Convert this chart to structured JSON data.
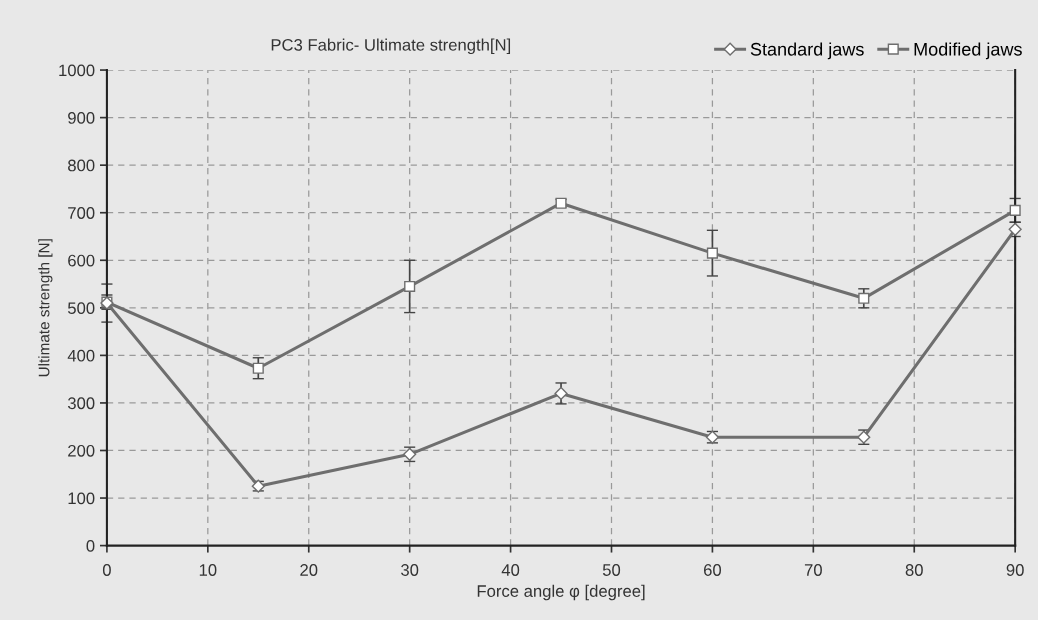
{
  "chart_data": {
    "type": "line",
    "title": "PC3 Fabric- Ultimate strength[N]",
    "xlabel": "Force angle φ [degree]",
    "ylabel": "Ultimate strength [N]",
    "x": [
      0,
      15,
      30,
      45,
      60,
      75,
      90
    ],
    "series": [
      {
        "name": "Standard jaws",
        "color": "#6e6e6e",
        "marker": "diamond",
        "values": [
          510,
          125,
          192,
          320,
          228,
          228,
          665
        ],
        "errors": [
          40,
          10,
          15,
          22,
          12,
          15,
          15
        ]
      },
      {
        "name": "Modified jaws",
        "color": "#6e6e6e",
        "marker": "square",
        "values": [
          512,
          373,
          545,
          720,
          615,
          520,
          705
        ],
        "errors": [
          15,
          22,
          55,
          8,
          48,
          20,
          25
        ]
      }
    ],
    "xlim": [
      0,
      90
    ],
    "xticks": [
      0,
      10,
      20,
      30,
      40,
      50,
      60,
      70,
      80,
      90
    ],
    "ylim": [
      0,
      1000
    ],
    "yticks": [
      0,
      100,
      200,
      300,
      400,
      500,
      600,
      700,
      800,
      900,
      1000
    ],
    "grid": true,
    "legend": "top right",
    "line_style": "solid"
  }
}
